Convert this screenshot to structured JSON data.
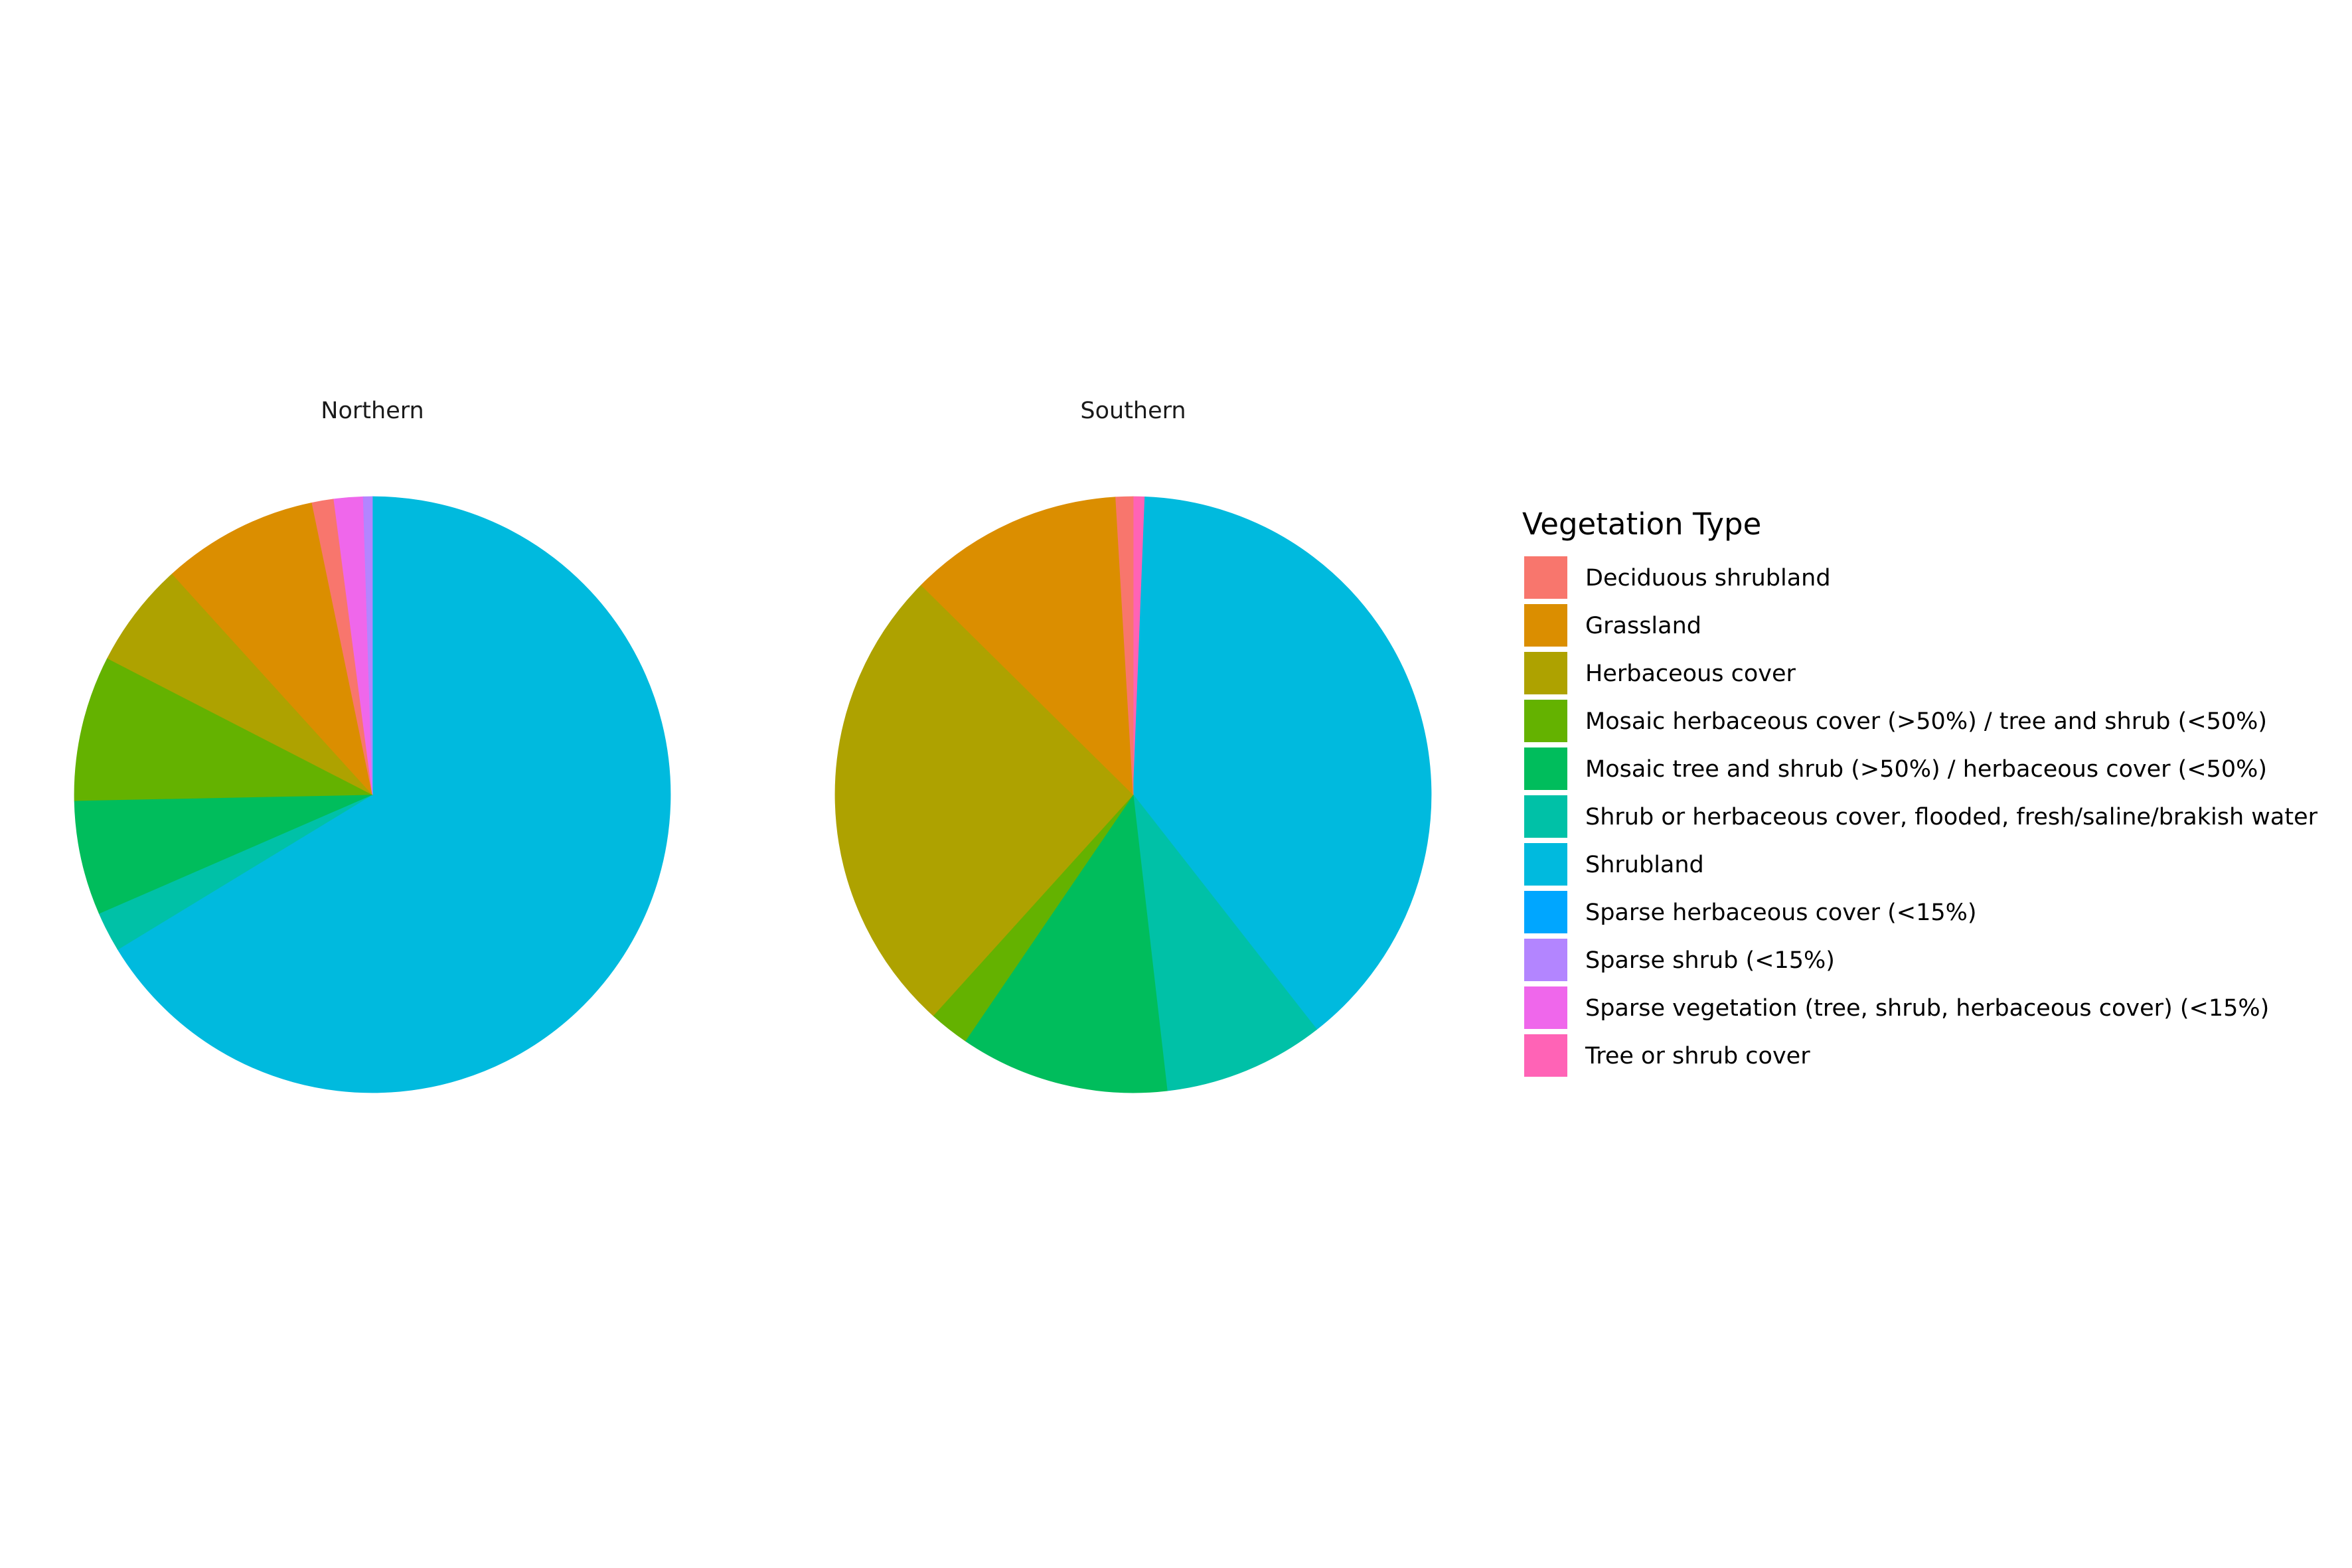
{
  "chart_data": {
    "type": "pie",
    "legend": {
      "title": "Vegetation Type",
      "placement": "right",
      "entries": [
        {
          "name": "Deciduous shrubland",
          "color": "#F8766D"
        },
        {
          "name": "Grassland",
          "color": "#DB8E00"
        },
        {
          "name": "Herbaceous cover",
          "color": "#AEA200"
        },
        {
          "name": "Mosaic herbaceous cover (>50%) / tree and shrub (<50%)",
          "color": "#64B200"
        },
        {
          "name": "Mosaic tree and shrub (>50%) / herbaceous cover (<50%)",
          "color": "#00BD5C"
        },
        {
          "name": "Shrub or herbaceous cover, flooded, fresh/saline/brakish water",
          "color": "#00C1A7"
        },
        {
          "name": "Shrubland",
          "color": "#00BADE"
        },
        {
          "name": "Sparse herbaceous cover (<15%)",
          "color": "#00A6FF"
        },
        {
          "name": "Sparse shrub (<15%)",
          "color": "#B385FF"
        },
        {
          "name": "Sparse vegetation (tree, shrub, herbaceous cover) (<15%)",
          "color": "#EF67EB"
        },
        {
          "name": "Tree or shrub cover",
          "color": "#FF63B6"
        }
      ]
    },
    "panels": [
      {
        "title": "Northern",
        "slices": [
          {
            "category": "Shrubland",
            "value": 67.3
          },
          {
            "category": "Shrub or herbaceous cover, flooded, fresh/saline/brakish water",
            "value": 2.2
          },
          {
            "category": "Mosaic tree and shrub (>50%) / herbaceous cover (<50%)",
            "value": 6.3
          },
          {
            "category": "Mosaic herbaceous cover (>50%) / tree and shrub (<50%)",
            "value": 8.0
          },
          {
            "category": "Herbaceous cover",
            "value": 5.8
          },
          {
            "category": "Grassland",
            "value": 8.6
          },
          {
            "category": "Deciduous shrubland",
            "value": 1.2
          },
          {
            "category": "Sparse vegetation (tree, shrub, herbaceous cover) (<15%)",
            "value": 1.6
          },
          {
            "category": "Sparse shrub (<15%)",
            "value": 0.5
          }
        ]
      },
      {
        "title": "Southern",
        "slices": [
          {
            "category": "Tree or shrub cover",
            "value": 0.6
          },
          {
            "category": "Shrubland",
            "value": 37.3
          },
          {
            "category": "Shrub or herbaceous cover, flooded, fresh/saline/brakish water",
            "value": 8.4
          },
          {
            "category": "Mosaic tree and shrub (>50%) / herbaceous cover (<50%)",
            "value": 10.9
          },
          {
            "category": "Mosaic herbaceous cover (>50%) / tree and shrub (<50%)",
            "value": 2.1
          },
          {
            "category": "Herbaceous cover",
            "value": 24.7
          },
          {
            "category": "Grassland",
            "value": 11.2
          },
          {
            "category": "Deciduous shrubland",
            "value": 0.9
          }
        ]
      }
    ]
  }
}
